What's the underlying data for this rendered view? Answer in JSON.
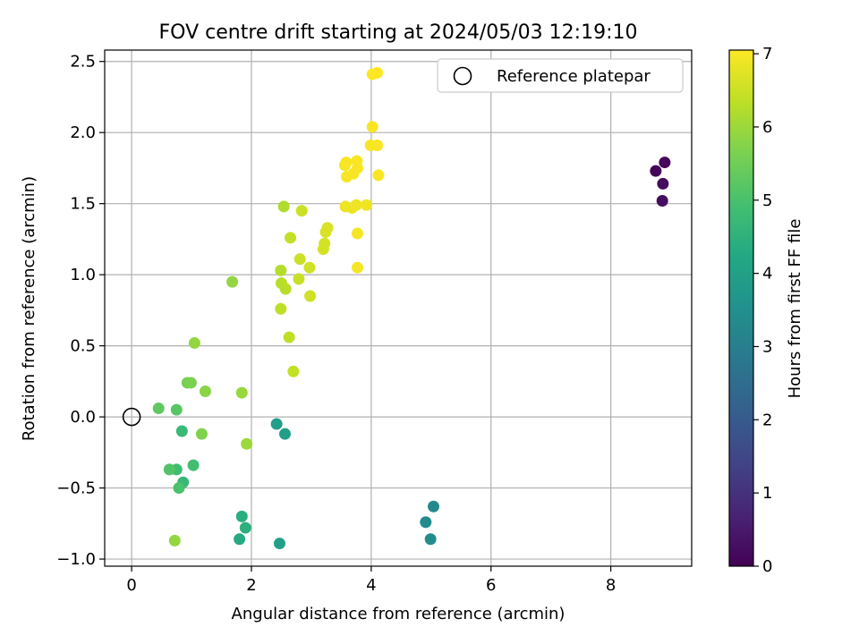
{
  "chart_data": {
    "type": "scatter",
    "title": "FOV centre drift starting at 2024/05/03 12:19:10",
    "xlabel": "Angular distance from reference (arcmin)",
    "ylabel": "Rotation from reference (arcmin)",
    "xlim": [
      -0.45,
      9.35
    ],
    "ylim": [
      -1.05,
      2.58
    ],
    "xticks": [
      0,
      2,
      4,
      6,
      8
    ],
    "xtick_labels": [
      "0",
      "2",
      "4",
      "6",
      "8"
    ],
    "yticks": [
      -1.0,
      -0.5,
      0.0,
      0.5,
      1.0,
      1.5,
      2.0,
      2.5
    ],
    "ytick_labels": [
      "−1.0",
      "−0.5",
      "0.0",
      "0.5",
      "1.0",
      "1.5",
      "2.0",
      "2.5"
    ],
    "grid": true,
    "colormap": "viridis",
    "colorbar": {
      "label": "Hours from first FF file",
      "range": [
        0,
        7.05
      ],
      "ticks": [
        0,
        1,
        2,
        3,
        4,
        5,
        6,
        7
      ],
      "tick_labels": [
        "0",
        "1",
        "2",
        "3",
        "4",
        "5",
        "6",
        "7"
      ]
    },
    "legend": {
      "location": "top-right",
      "entries": [
        "Reference platepar"
      ]
    },
    "reference_point": {
      "x": 0,
      "y": 0,
      "label": "Reference platepar"
    },
    "points": [
      {
        "x": 8.75,
        "y": 1.73,
        "c": 0.1
      },
      {
        "x": 8.9,
        "y": 1.79,
        "c": 0.15
      },
      {
        "x": 8.87,
        "y": 1.64,
        "c": 0.2
      },
      {
        "x": 8.86,
        "y": 1.52,
        "c": 0.25
      },
      {
        "x": 5.04,
        "y": -0.63,
        "c": 3.3
      },
      {
        "x": 4.91,
        "y": -0.74,
        "c": 3.35
      },
      {
        "x": 4.99,
        "y": -0.86,
        "c": 3.4
      },
      {
        "x": 2.42,
        "y": -0.05,
        "c": 3.9
      },
      {
        "x": 2.56,
        "y": -0.12,
        "c": 3.95
      },
      {
        "x": 2.47,
        "y": -0.89,
        "c": 4.0
      },
      {
        "x": 1.8,
        "y": -0.86,
        "c": 4.3
      },
      {
        "x": 1.84,
        "y": -0.7,
        "c": 4.4
      },
      {
        "x": 1.9,
        "y": -0.78,
        "c": 4.45
      },
      {
        "x": 0.86,
        "y": -0.46,
        "c": 4.7
      },
      {
        "x": 0.84,
        "y": -0.1,
        "c": 4.75
      },
      {
        "x": 0.75,
        "y": -0.37,
        "c": 4.85
      },
      {
        "x": 1.03,
        "y": -0.34,
        "c": 4.9
      },
      {
        "x": 0.79,
        "y": -0.5,
        "c": 5.0
      },
      {
        "x": 0.63,
        "y": -0.37,
        "c": 5.1
      },
      {
        "x": 0.75,
        "y": 0.05,
        "c": 5.2
      },
      {
        "x": 0.45,
        "y": 0.06,
        "c": 5.3
      },
      {
        "x": 0.93,
        "y": 0.24,
        "c": 5.6
      },
      {
        "x": 0.99,
        "y": 0.24,
        "c": 5.65
      },
      {
        "x": 1.17,
        "y": -0.12,
        "c": 5.7
      },
      {
        "x": 1.23,
        "y": 0.18,
        "c": 5.8
      },
      {
        "x": 1.05,
        "y": 0.52,
        "c": 5.9
      },
      {
        "x": 0.72,
        "y": -0.87,
        "c": 5.9
      },
      {
        "x": 1.84,
        "y": 0.17,
        "c": 5.95
      },
      {
        "x": 1.92,
        "y": -0.19,
        "c": 6.0
      },
      {
        "x": 1.68,
        "y": 0.95,
        "c": 5.9
      },
      {
        "x": 2.54,
        "y": 1.48,
        "c": 6.2
      },
      {
        "x": 2.49,
        "y": 1.03,
        "c": 6.25
      },
      {
        "x": 2.5,
        "y": 0.94,
        "c": 6.3
      },
      {
        "x": 2.57,
        "y": 0.9,
        "c": 6.3
      },
      {
        "x": 2.49,
        "y": 0.76,
        "c": 6.35
      },
      {
        "x": 2.63,
        "y": 0.56,
        "c": 6.35
      },
      {
        "x": 2.7,
        "y": 0.32,
        "c": 6.4
      },
      {
        "x": 2.65,
        "y": 1.26,
        "c": 6.4
      },
      {
        "x": 2.79,
        "y": 0.97,
        "c": 6.45
      },
      {
        "x": 2.81,
        "y": 1.11,
        "c": 6.5
      },
      {
        "x": 2.84,
        "y": 1.45,
        "c": 6.5
      },
      {
        "x": 2.97,
        "y": 1.05,
        "c": 6.55
      },
      {
        "x": 2.98,
        "y": 0.85,
        "c": 6.55
      },
      {
        "x": 3.2,
        "y": 1.18,
        "c": 6.6
      },
      {
        "x": 3.22,
        "y": 1.22,
        "c": 6.6
      },
      {
        "x": 3.24,
        "y": 1.3,
        "c": 6.65
      },
      {
        "x": 3.27,
        "y": 1.33,
        "c": 6.65
      },
      {
        "x": 3.57,
        "y": 1.48,
        "c": 6.85
      },
      {
        "x": 3.68,
        "y": 1.47,
        "c": 6.85
      },
      {
        "x": 3.75,
        "y": 1.49,
        "c": 6.9
      },
      {
        "x": 3.92,
        "y": 1.49,
        "c": 6.9
      },
      {
        "x": 3.77,
        "y": 1.29,
        "c": 6.95
      },
      {
        "x": 3.77,
        "y": 1.05,
        "c": 6.95
      },
      {
        "x": 3.56,
        "y": 1.77,
        "c": 6.95
      },
      {
        "x": 3.59,
        "y": 1.69,
        "c": 7.0
      },
      {
        "x": 3.7,
        "y": 1.71,
        "c": 7.0
      },
      {
        "x": 3.77,
        "y": 1.75,
        "c": 7.0
      },
      {
        "x": 3.76,
        "y": 1.8,
        "c": 7.0
      },
      {
        "x": 3.58,
        "y": 1.79,
        "c": 7.0
      },
      {
        "x": 3.99,
        "y": 1.91,
        "c": 7.0
      },
      {
        "x": 4.1,
        "y": 1.91,
        "c": 7.0
      },
      {
        "x": 4.12,
        "y": 1.7,
        "c": 7.0
      },
      {
        "x": 4.02,
        "y": 2.04,
        "c": 7.0
      },
      {
        "x": 4.02,
        "y": 2.41,
        "c": 7.05
      },
      {
        "x": 4.1,
        "y": 2.42,
        "c": 7.05
      }
    ]
  }
}
